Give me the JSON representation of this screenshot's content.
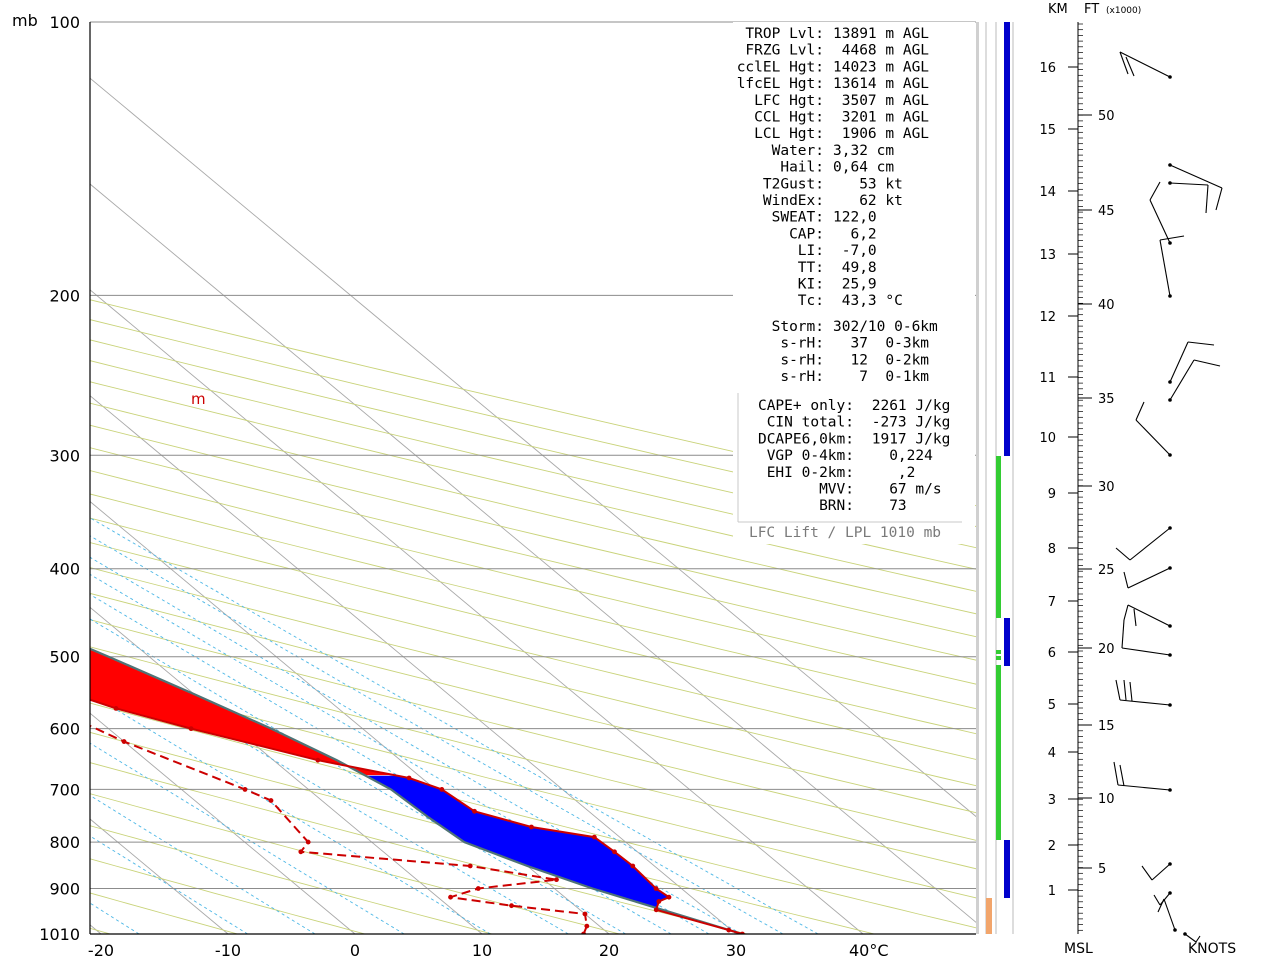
{
  "chart_data": {
    "type": "line",
    "chart_kind": "skew-T log-P sounding",
    "pressure_unit_label": "mb",
    "pressure_ticks": [
      100,
      200,
      300,
      400,
      500,
      600,
      700,
      800,
      900,
      1010
    ],
    "temperature_ticks": [
      "-20",
      "-10",
      "0",
      "10",
      "20",
      "30",
      "40°C"
    ],
    "ylim_mb": [
      1010,
      100
    ],
    "xlim_C": [
      -22,
      48
    ],
    "series": [
      {
        "key": "temperature",
        "color": "#cc0000",
        "points": [
          [
            1010,
            30.5
          ],
          [
            1000,
            29.8
          ],
          [
            950,
            26.0
          ],
          [
            930,
            27.0
          ],
          [
            920,
            28.2
          ],
          [
            900,
            28.0
          ],
          [
            850,
            28.3
          ],
          [
            820,
            28.2
          ],
          [
            790,
            28.0
          ],
          [
            770,
            24.0
          ],
          [
            740,
            21.0
          ],
          [
            700,
            20.5
          ],
          [
            680,
            19.0
          ],
          [
            650,
            13.5
          ],
          [
            600,
            6.5
          ],
          [
            570,
            2.5
          ],
          [
            540,
            -0.5
          ],
          [
            500,
            -4.0
          ],
          [
            490,
            -4.2
          ],
          [
            460,
            -3.4
          ],
          [
            430,
            -4.5
          ],
          [
            400,
            -8.0
          ],
          [
            350,
            -14.0
          ],
          [
            300,
            -21.0
          ],
          [
            250,
            -30.0
          ],
          [
            200,
            -41.0
          ],
          [
            170,
            -49.0
          ],
          [
            140,
            -53.0
          ],
          [
            125,
            -46.0
          ],
          [
            100,
            -33.0
          ]
        ]
      },
      {
        "key": "dewpoint",
        "color": "#cc0000",
        "dashed": true,
        "points": [
          [
            1010,
            18.0
          ],
          [
            990,
            19.0
          ],
          [
            960,
            20.0
          ],
          [
            940,
            15.0
          ],
          [
            920,
            11.0
          ],
          [
            900,
            14.0
          ],
          [
            880,
            21.0
          ],
          [
            850,
            15.5
          ],
          [
            820,
            3.5
          ],
          [
            800,
            5.0
          ],
          [
            720,
            6.0
          ],
          [
            700,
            5.0
          ],
          [
            620,
            0.0
          ],
          [
            580,
            -2.0
          ],
          [
            560,
            -13.0
          ],
          [
            530,
            -22.0
          ],
          [
            520,
            -6.0
          ],
          [
            510,
            -5.0
          ],
          [
            505,
            -22.0
          ],
          [
            500,
            -23.0
          ],
          [
            495,
            -5.0
          ],
          [
            490,
            -23.0
          ],
          [
            480,
            -15.0
          ],
          [
            470,
            -11.0
          ],
          [
            440,
            -14.0
          ],
          [
            400,
            -20.0
          ],
          [
            300,
            -37.0
          ],
          [
            280,
            -42.0
          ]
        ]
      },
      {
        "key": "parcel",
        "color": "#4f7376",
        "points": [
          [
            1010,
            30.5
          ],
          [
            950,
            26.5
          ],
          [
            900,
            23.0
          ],
          [
            850,
            20.0
          ],
          [
            800,
            17.3
          ],
          [
            750,
            16.8
          ],
          [
            700,
            16.5
          ],
          [
            650,
            15.0
          ],
          [
            600,
            12.8
          ],
          [
            550,
            10.0
          ],
          [
            500,
            6.8
          ],
          [
            450,
            3.0
          ],
          [
            400,
            -1.5
          ],
          [
            350,
            -6.8
          ],
          [
            300,
            -13.8
          ],
          [
            250,
            -22.0
          ],
          [
            200,
            -32.5
          ],
          [
            160,
            -43.0
          ],
          [
            130,
            -56.5
          ],
          [
            110,
            -65.5
          ],
          [
            105,
            -68.5
          ]
        ]
      }
    ],
    "fills": [
      {
        "name": "CAPE",
        "color": "#ff0000"
      },
      {
        "name": "CIN",
        "color": "#0000ff"
      },
      {
        "name": "upper",
        "color": "#00ffff"
      }
    ],
    "mixing_ratio_marker": "m",
    "height_scale": {
      "km_label": "KM",
      "ft_label": "FT",
      "ft_note": "(x1000)",
      "km_ticks": [
        "1",
        "2",
        "3",
        "4",
        "5",
        "6",
        "7",
        "8",
        "9",
        "10",
        "11",
        "12",
        "13",
        "14",
        "15",
        "16"
      ],
      "ft_ticks": [
        "5",
        "10",
        "15",
        "20",
        "25",
        "30",
        "35",
        "40",
        "45",
        "50"
      ],
      "msl_label": "MSL",
      "knots_label": "KNOTS"
    },
    "wind_barbs_count": 14
  },
  "params": {
    "rows": [
      {
        "label": "TROP Lvl:",
        "value": "13891 m AGL"
      },
      {
        "label": "FRZG Lvl:",
        "value": " 4468 m AGL"
      },
      {
        "label": "cclEL Hgt:",
        "value": "14023 m AGL"
      },
      {
        "label": "lfcEL Hgt:",
        "value": "13614 m AGL"
      },
      {
        "label": "LFC Hgt:",
        "value": " 3507 m AGL"
      },
      {
        "label": "CCL Hgt:",
        "value": " 3201 m AGL"
      },
      {
        "label": "LCL Hgt:",
        "value": " 1906 m AGL"
      },
      {
        "label": "Water:",
        "value": "3,32 cm"
      },
      {
        "label": "Hail:",
        "value": "0,64 cm"
      },
      {
        "label": "T2Gust:",
        "value": "   53 kt"
      },
      {
        "label": "WindEx:",
        "value": "   62 kt"
      },
      {
        "label": "SWEAT:",
        "value": "122,0"
      },
      {
        "label": "CAP:",
        "value": "  6,2"
      },
      {
        "label": "LI:",
        "value": " -7,0"
      },
      {
        "label": "TT:",
        "value": " 49,8"
      },
      {
        "label": "KI:",
        "value": " 25,9"
      },
      {
        "label": "Tc:",
        "value": " 43,3 °C"
      }
    ],
    "storm": [
      {
        "label": "Storm:",
        "value": "302/10 0-6km"
      },
      {
        "label": "s-rH:",
        "value": "  37  0-3km"
      },
      {
        "label": "s-rH:",
        "value": "  12  0-2km"
      },
      {
        "label": "s-rH:",
        "value": "   7  0-1km"
      }
    ],
    "cape": [
      {
        "label": "CAPE+ only:",
        "value": " 2261 J/kg"
      },
      {
        "label": "CIN total:",
        "value": " -273 J/kg"
      },
      {
        "label": "DCAPE6,0km:",
        "value": " 1917 J/kg"
      },
      {
        "label": "VGP 0-4km:",
        "value": "   0,224"
      },
      {
        "label": "EHI 0-2km:",
        "value": "    ,2"
      },
      {
        "label": "MVV:",
        "value": "   67 m/s"
      },
      {
        "label": "BRN:",
        "value": "   73"
      }
    ],
    "footer": "LFC Lift / LPL 1010 mb"
  }
}
